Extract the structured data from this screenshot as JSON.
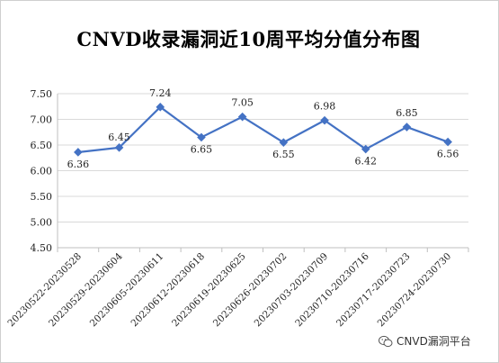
{
  "chart_data": {
    "type": "line",
    "title": "CNVD收录漏洞近10周平均分值分布图",
    "categories": [
      "20230522-20230528",
      "20230529-20230604",
      "20230605-20230611",
      "20230612-20230618",
      "20230619-20230625",
      "20230626-20230702",
      "20230703-20230709",
      "20230710-20230716",
      "20230717-20230723",
      "20230724-20230730"
    ],
    "values": [
      6.36,
      6.45,
      7.24,
      6.65,
      7.05,
      6.55,
      6.98,
      6.42,
      6.85,
      6.56
    ],
    "data_labels": [
      "6.36",
      "6.45",
      "7.24",
      "6.65",
      "7.05",
      "6.55",
      "6.98",
      "6.42",
      "6.85",
      "6.56"
    ],
    "yticks": [
      "4.50",
      "5.00",
      "5.50",
      "6.00",
      "6.50",
      "7.00",
      "7.50"
    ],
    "ylim": [
      4.5,
      7.5
    ],
    "grid": true,
    "line_color": "#4472c4"
  },
  "watermark": {
    "text": "CNVD漏洞平台",
    "icon": "wechat-icon"
  }
}
